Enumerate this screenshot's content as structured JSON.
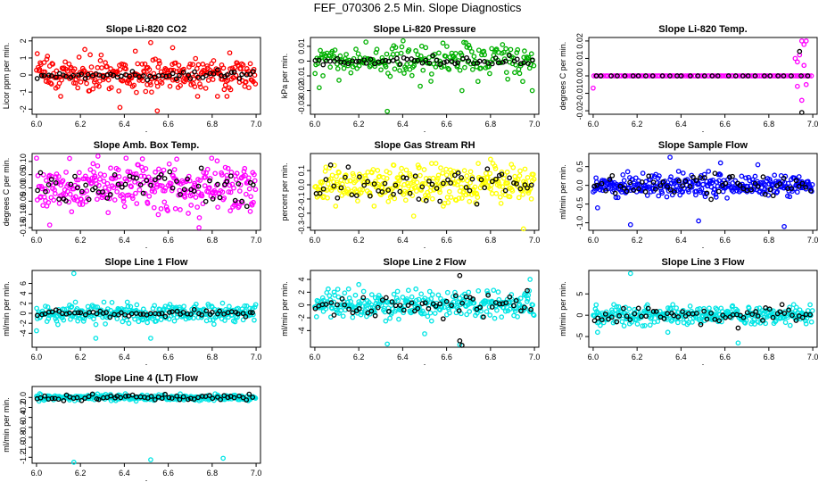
{
  "figure": {
    "title": "FEF_070306  2.5 Min. Slope Diagnostics"
  },
  "chart_data": [
    {
      "type": "scatter",
      "title": "Slope Li-820 CO2",
      "ylabel": "Licor ppm per min.",
      "xlabel": "",
      "xlim": [
        5.98,
        7.02
      ],
      "ylim": [
        -2.3,
        2.2
      ],
      "x_ticks": [
        6.0,
        6.2,
        6.4,
        6.6,
        6.8,
        7.0
      ],
      "y_ticks": [
        -2,
        -1,
        0,
        1,
        2
      ],
      "y_tick_labels": [
        "-2",
        "-1",
        "0",
        "1",
        "2"
      ],
      "x": [
        6.0,
        7.0
      ],
      "series": [
        {
          "color": "#ff0000",
          "noise": 0.5,
          "count": 300,
          "outliers": [
            [
              6.38,
              -1.9
            ],
            [
              6.52,
              1.9
            ],
            [
              6.55,
              -2.1
            ],
            [
              6.22,
              1.5
            ],
            [
              6.05,
              1.1
            ],
            [
              6.88,
              1.3
            ],
            [
              6.62,
              1.6
            ],
            [
              6.45,
              1.4
            ]
          ]
        },
        {
          "color": "#000000",
          "noise": 0.12,
          "count": 60,
          "outliers": []
        }
      ]
    },
    {
      "type": "scatter",
      "title": "Slope Li-820 Pressure",
      "ylabel": "kPa per min.",
      "xlabel": "",
      "xlim": [
        5.98,
        7.02
      ],
      "ylim": [
        -0.036,
        0.016
      ],
      "x_ticks": [
        6.0,
        6.2,
        6.4,
        6.6,
        6.8,
        7.0
      ],
      "y_ticks": [
        -0.03,
        -0.02,
        -0.01,
        0.0,
        0.01
      ],
      "y_tick_labels": [
        "-0.03",
        "-0.02",
        "-0.01",
        "0",
        "0.01"
      ],
      "x": [
        6.0,
        7.0
      ],
      "series": [
        {
          "color": "#00b000",
          "noise": 0.0055,
          "count": 220,
          "outliers": [
            [
              6.33,
              -0.034
            ],
            [
              6.02,
              -0.018
            ],
            [
              6.67,
              -0.02
            ],
            [
              6.99,
              -0.02
            ],
            [
              6.48,
              -0.017
            ]
          ]
        },
        {
          "color": "#000000",
          "noise": 0.0015,
          "count": 60,
          "outliers": []
        }
      ]
    },
    {
      "type": "scatter",
      "title": "Slope Li-820 Temp.",
      "ylabel": "degrees C per min.",
      "xlabel": "",
      "xlim": [
        5.98,
        7.02
      ],
      "ylim": [
        -0.022,
        0.022
      ],
      "x_ticks": [
        6.0,
        6.2,
        6.4,
        6.6,
        6.8,
        7.0
      ],
      "y_ticks": [
        -0.02,
        -0.01,
        0.0,
        0.01,
        0.02
      ],
      "y_tick_labels": [
        "-0.02",
        "-0.01",
        "0.00",
        "0.01",
        "0.02"
      ],
      "x": [
        6.0,
        7.0
      ],
      "series": [
        {
          "color": "#ff00ff",
          "noise": 0.0,
          "count": 110,
          "outliers": [
            [
              6.0,
              -0.007
            ],
            [
              6.92,
              0.01
            ],
            [
              6.93,
              0.008
            ],
            [
              6.95,
              0.02
            ],
            [
              6.96,
              0.018
            ],
            [
              6.97,
              0.02
            ],
            [
              6.94,
              0.012
            ],
            [
              6.96,
              0.006
            ],
            [
              6.93,
              -0.006
            ],
            [
              6.95,
              -0.014
            ],
            [
              6.97,
              -0.005
            ]
          ]
        },
        {
          "color": "#000000",
          "noise": 0.0,
          "count": 30,
          "outliers": [
            [
              6.95,
              -0.021
            ],
            [
              6.94,
              0.014
            ]
          ]
        }
      ]
    },
    {
      "type": "scatter",
      "title": "Slope Amb. Box Temp.",
      "ylabel": "degrees C per min.",
      "xlabel": "",
      "xlim": [
        5.98,
        7.02
      ],
      "ylim": [
        -0.16,
        0.13
      ],
      "x_ticks": [
        6.0,
        6.2,
        6.4,
        6.6,
        6.8,
        7.0
      ],
      "y_ticks": [
        -0.15,
        -0.1,
        -0.05,
        0.0,
        0.05,
        0.1
      ],
      "y_tick_labels": [
        "-0.15",
        "-0.10",
        "-0.05",
        "0.00",
        "0.05",
        "0.10"
      ],
      "x": [
        6.0,
        7.0
      ],
      "series": [
        {
          "color": "#ff00ff",
          "noise": 0.045,
          "count": 320,
          "outliers": [
            [
              6.74,
              -0.15
            ],
            [
              6.28,
              0.12
            ],
            [
              6.06,
              -0.14
            ]
          ]
        },
        {
          "color": "#000000",
          "noise": 0.03,
          "count": 60,
          "outliers": []
        }
      ]
    },
    {
      "type": "scatter",
      "title": "Slope Gas Stream RH",
      "ylabel": "percent per min.",
      "xlabel": "",
      "xlim": [
        5.98,
        7.02
      ],
      "ylim": [
        -0.32,
        0.22
      ],
      "x_ticks": [
        6.0,
        6.2,
        6.4,
        6.6,
        6.8,
        7.0
      ],
      "y_ticks": [
        -0.3,
        -0.2,
        -0.1,
        0.0,
        0.1
      ],
      "y_tick_labels": [
        "-0.3",
        "-0.2",
        "-0.1",
        "0.0",
        "0.1"
      ],
      "x": [
        6.0,
        7.0
      ],
      "series": [
        {
          "color": "#ffff00",
          "noise": 0.06,
          "count": 320,
          "outliers": [
            [
              6.95,
              -0.31
            ],
            [
              6.8,
              0.18
            ],
            [
              6.45,
              -0.22
            ]
          ]
        },
        {
          "color": "#000000",
          "noise": 0.06,
          "count": 60,
          "outliers": []
        }
      ]
    },
    {
      "type": "scatter",
      "title": "Slope Sample Flow",
      "ylabel": "ml/min per min.",
      "xlabel": "",
      "xlim": [
        5.98,
        7.02
      ],
      "ylim": [
        -1.2,
        0.85
      ],
      "x_ticks": [
        6.0,
        6.2,
        6.4,
        6.6,
        6.8,
        7.0
      ],
      "y_ticks": [
        -1.0,
        -0.5,
        0.0,
        0.5
      ],
      "y_tick_labels": [
        "-1.0",
        "-0.5",
        "0.0",
        "0.5"
      ],
      "x": [
        6.0,
        7.0
      ],
      "series": [
        {
          "color": "#0000ff",
          "noise": 0.15,
          "count": 320,
          "outliers": [
            [
              6.17,
              -1.05
            ],
            [
              6.35,
              0.75
            ],
            [
              6.48,
              -0.95
            ],
            [
              6.58,
              0.6
            ],
            [
              6.87,
              -1.1
            ],
            [
              6.75,
              0.55
            ],
            [
              6.02,
              -0.6
            ]
          ]
        },
        {
          "color": "#000000",
          "noise": 0.15,
          "count": 60,
          "outliers": []
        }
      ]
    },
    {
      "type": "scatter",
      "title": "Slope Line 1 Flow",
      "ylabel": "ml/min per min.",
      "xlabel": "",
      "xlim": [
        5.98,
        7.02
      ],
      "ylim": [
        -6.8,
        8.6
      ],
      "x_ticks": [
        6.0,
        6.2,
        6.4,
        6.6,
        6.8,
        7.0
      ],
      "y_ticks": [
        -4,
        -2,
        0,
        2,
        4,
        6
      ],
      "y_tick_labels": [
        "-4",
        "-2",
        "0",
        "2",
        "4",
        "6"
      ],
      "x": [
        6.0,
        7.0
      ],
      "series": [
        {
          "color": "#00e5e5",
          "noise": 0.9,
          "count": 300,
          "outliers": [
            [
              6.17,
              8.0
            ],
            [
              6.27,
              -5.0
            ],
            [
              6.52,
              -5.0
            ],
            [
              6.0,
              -3.5
            ]
          ]
        },
        {
          "color": "#000000",
          "noise": 0.3,
          "count": 60,
          "outliers": []
        }
      ]
    },
    {
      "type": "scatter",
      "title": "Slope Line 2 Flow",
      "ylabel": "ml/min per min.",
      "xlabel": "",
      "xlim": [
        5.98,
        7.02
      ],
      "ylim": [
        -6.6,
        5.4
      ],
      "x_ticks": [
        6.0,
        6.2,
        6.4,
        6.6,
        6.8,
        7.0
      ],
      "y_ticks": [
        -4,
        -2,
        0,
        2,
        4
      ],
      "y_tick_labels": [
        "-4",
        "-2",
        "0",
        "2",
        "4"
      ],
      "x": [
        6.0,
        7.0
      ],
      "series": [
        {
          "color": "#00e5e5",
          "noise": 1.0,
          "count": 320,
          "outliers": [
            [
              6.33,
              -6.1
            ],
            [
              6.66,
              -6.2
            ],
            [
              6.5,
              -4.5
            ],
            [
              6.98,
              4.0
            ],
            [
              6.2,
              3.2
            ]
          ]
        },
        {
          "color": "#000000",
          "noise": 0.9,
          "count": 60,
          "outliers": [
            [
              6.66,
              4.6
            ],
            [
              6.66,
              -5.6
            ],
            [
              6.67,
              -6.3
            ]
          ]
        }
      ]
    },
    {
      "type": "scatter",
      "title": "Slope Line 3 Flow",
      "ylabel": "ml/min per min.",
      "xlabel": "",
      "xlim": [
        5.98,
        7.02
      ],
      "ylim": [
        -7.5,
        10.5
      ],
      "x_ticks": [
        6.0,
        6.2,
        6.4,
        6.6,
        6.8,
        7.0
      ],
      "y_ticks": [
        -5,
        0,
        5
      ],
      "y_tick_labels": [
        "-5",
        "0",
        "5"
      ],
      "x": [
        6.0,
        7.0
      ],
      "series": [
        {
          "color": "#00e5e5",
          "noise": 1.0,
          "count": 320,
          "outliers": [
            [
              6.17,
              9.8
            ],
            [
              6.66,
              -6.5
            ],
            [
              6.34,
              -4.0
            ],
            [
              6.02,
              -4.0
            ]
          ]
        },
        {
          "color": "#000000",
          "noise": 0.9,
          "count": 60,
          "outliers": [
            [
              6.86,
              2.5
            ],
            [
              6.66,
              -3.0
            ]
          ]
        }
      ]
    },
    {
      "type": "scatter",
      "title": "Slope Line 4 (LT) Flow",
      "ylabel": "ml/min per min.",
      "xlabel": "",
      "xlim": [
        5.98,
        7.02
      ],
      "ylim": [
        -1.32,
        0.22
      ],
      "x_ticks": [
        6.0,
        6.2,
        6.4,
        6.6,
        6.8,
        7.0
      ],
      "y_ticks": [
        -1.2,
        -1.0,
        -0.8,
        -0.6,
        -0.4,
        -0.2,
        0.0
      ],
      "y_tick_labels": [
        "-1.2",
        "-1.0",
        "-0.8",
        "-0.6",
        "-0.4",
        "-0.2",
        "0.0"
      ],
      "x": [
        6.0,
        7.0
      ],
      "series": [
        {
          "color": "#00e5e5",
          "noise": 0.03,
          "count": 300,
          "outliers": [
            [
              6.17,
              -1.3
            ],
            [
              6.52,
              -1.25
            ],
            [
              6.85,
              -1.22
            ]
          ]
        },
        {
          "color": "#000000",
          "noise": 0.03,
          "count": 60,
          "outliers": []
        }
      ]
    }
  ]
}
